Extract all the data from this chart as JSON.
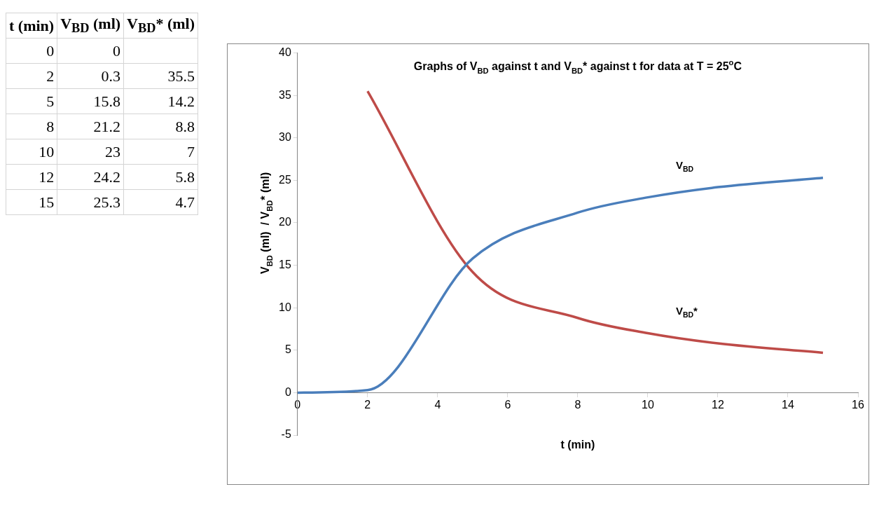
{
  "chart_data": [
    {
      "type": "other",
      "categories": [
        "t (min)",
        "V$_{BD}$ (ml)",
        "V$_{BD}$* (ml)"
      ],
      "cell_labels": [
        [
          "0",
          "0",
          null
        ],
        [
          "2",
          "0.3",
          "35.5"
        ],
        [
          "5",
          "15.8",
          "14.2"
        ],
        [
          "8",
          "21.2",
          "8.8"
        ],
        [
          "10",
          "23",
          "7"
        ],
        [
          "12",
          "24.2",
          "5.8"
        ],
        [
          "15",
          "25.3",
          "4.7"
        ]
      ]
    },
    {
      "type": "line",
      "title": "Graphs of V$_{BD}$ against t and V$_{BD}$* against t for data at T = 25$^{o}$C",
      "xlabel": "t (min)",
      "ylabel": "V$_{BD}$ (ml)  / V$_{BD}$* (ml)",
      "series": [
        {
          "name": "V$_{BD}$",
          "color": "#4a7ebb",
          "x": [
            0,
            2,
            5,
            8,
            10,
            12,
            15
          ],
          "values": [
            0,
            0.3,
            15.8,
            21.2,
            23,
            24.2,
            25.3
          ]
        },
        {
          "name": "V$_{BD}$*",
          "color": "#be4b48",
          "x": [
            2,
            5,
            8,
            10,
            12,
            15
          ],
          "values": [
            35.5,
            14.2,
            8.8,
            7,
            5.8,
            4.7
          ]
        }
      ],
      "xlim": [
        0,
        16
      ],
      "xticks": [
        0,
        2,
        4,
        6,
        8,
        10,
        12,
        14,
        16
      ],
      "ylim": [
        -5,
        40
      ],
      "yticks": [
        -5,
        0,
        5,
        10,
        15,
        20,
        25,
        30,
        35,
        40
      ],
      "grid": false,
      "legend": false,
      "marker": "none",
      "line_style": "solid"
    }
  ]
}
